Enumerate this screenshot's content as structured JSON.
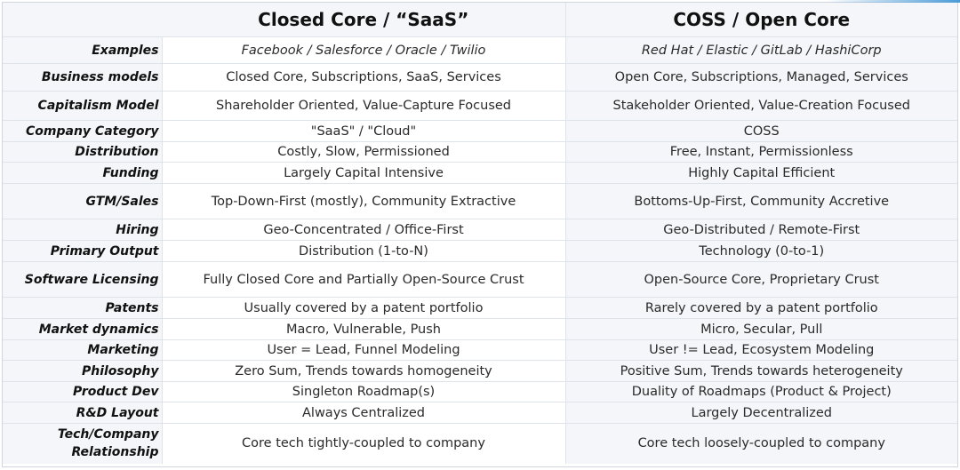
{
  "header": {
    "col_a": "Closed Core / “SaaS”",
    "col_b": "COSS / Open Core"
  },
  "rows": [
    {
      "label": "Examples",
      "a": "Facebook / Salesforce / Oracle / Twilio",
      "b": "Red Hat / Elastic / GitLab / HashiCorp"
    },
    {
      "label": "Business models",
      "a": "Closed Core, Subscriptions, SaaS, Services",
      "b": "Open Core, Subscriptions, Managed, Services"
    },
    {
      "label": "Capitalism Model",
      "a": "Shareholder Oriented, Value-Capture Focused",
      "b": "Stakeholder Oriented, Value-Creation Focused"
    },
    {
      "label": "Company Category",
      "a": "\"SaaS\" / \"Cloud\"",
      "b": "COSS"
    },
    {
      "label": "Distribution",
      "a": "Costly, Slow, Permissioned",
      "b": "Free, Instant, Permissionless"
    },
    {
      "label": "Funding",
      "a": "Largely Capital Intensive",
      "b": "Highly Capital Efficient"
    },
    {
      "label": "GTM/Sales",
      "a": "Top-Down-First (mostly), Community Extractive",
      "b": "Bottoms-Up-First, Community Accretive"
    },
    {
      "label": "Hiring",
      "a": "Geo-Concentrated / Office-First",
      "b": "Geo-Distributed / Remote-First"
    },
    {
      "label": "Primary Output",
      "a": "Distribution (1-to-N)",
      "b": "Technology (0-to-1)"
    },
    {
      "label": "Software Licensing",
      "a": "Fully Closed Core and Partially Open-Source Crust",
      "b": "Open-Source Core, Proprietary Crust"
    },
    {
      "label": "Patents",
      "a": "Usually covered by a patent portfolio",
      "b": "Rarely covered by a patent portfolio"
    },
    {
      "label": "Market dynamics",
      "a": "Macro, Vulnerable, Push",
      "b": "Micro, Secular, Pull"
    },
    {
      "label": "Marketing",
      "a": "User = Lead, Funnel Modeling",
      "b": "User != Lead, Ecosystem Modeling"
    },
    {
      "label": "Philosophy",
      "a": "Zero Sum, Trends towards homogeneity",
      "b": "Positive Sum, Trends towards heterogeneity"
    },
    {
      "label": "Product Dev",
      "a": "Singleton Roadmap(s)",
      "b": "Duality of Roadmaps (Product & Project)"
    },
    {
      "label": "R&D Layout",
      "a": "Always Centralized",
      "b": "Largely Decentralized"
    },
    {
      "label": "Tech/Company Relationship",
      "a": "Core tech tightly-coupled to company",
      "b": "Core tech loosely-coupled to company"
    }
  ],
  "colors": {
    "shade": "#f4f6f9",
    "grid": "#dfe4ea",
    "accent": "#4a9bd6"
  }
}
